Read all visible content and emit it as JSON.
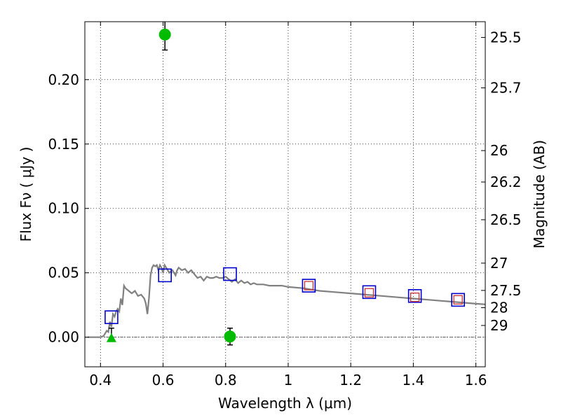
{
  "chart_data": {
    "type": "scatter",
    "xlabel": "Wavelength  λ (μm)",
    "ylabel": "Flux  Fν  ( μJy )",
    "y2label": "Magnitude (AB)",
    "xlim": [
      0.35,
      1.63
    ],
    "ylim": [
      -0.023,
      0.245
    ],
    "grid": true,
    "x_ticks": [
      0.4,
      0.6,
      0.8,
      1.0,
      1.2,
      1.4,
      1.6
    ],
    "x_tick_labels": [
      "0.4",
      "0.6",
      "0.8",
      "1",
      "1.2",
      "1.4",
      "1.6"
    ],
    "y_ticks": [
      0.0,
      0.05,
      0.1,
      0.15,
      0.2
    ],
    "y_tick_labels": [
      "0.00",
      "0.05",
      "0.10",
      "0.15",
      "0.20"
    ],
    "mag_ticks": [
      {
        "flux": 0.2328,
        "label": "25.5"
      },
      {
        "flux": 0.1936,
        "label": "25.7"
      },
      {
        "flux": 0.1449,
        "label": "26"
      },
      {
        "flux": 0.1205,
        "label": "26.2"
      },
      {
        "flux": 0.0912,
        "label": "26.5"
      },
      {
        "flux": 0.0575,
        "label": "27"
      },
      {
        "flux": 0.0363,
        "label": "27.5"
      },
      {
        "flux": 0.0229,
        "label": "28"
      },
      {
        "flux": 0.0091,
        "label": "29"
      }
    ],
    "model_spectrum": {
      "color": "#808080",
      "points": [
        [
          0.36,
          0.0
        ],
        [
          0.4,
          0.0
        ],
        [
          0.41,
          0.001
        ],
        [
          0.42,
          0.005
        ],
        [
          0.425,
          0.004
        ],
        [
          0.43,
          0.012
        ],
        [
          0.435,
          0.008
        ],
        [
          0.44,
          0.018
        ],
        [
          0.445,
          0.016
        ],
        [
          0.45,
          0.02
        ],
        [
          0.455,
          0.022
        ],
        [
          0.46,
          0.02
        ],
        [
          0.465,
          0.03
        ],
        [
          0.47,
          0.025
        ],
        [
          0.475,
          0.04
        ],
        [
          0.48,
          0.038
        ],
        [
          0.49,
          0.036
        ],
        [
          0.5,
          0.034
        ],
        [
          0.51,
          0.036
        ],
        [
          0.52,
          0.032
        ],
        [
          0.53,
          0.033
        ],
        [
          0.54,
          0.03
        ],
        [
          0.545,
          0.026
        ],
        [
          0.55,
          0.018
        ],
        [
          0.555,
          0.03
        ],
        [
          0.56,
          0.048
        ],
        [
          0.565,
          0.054
        ],
        [
          0.57,
          0.056
        ],
        [
          0.575,
          0.055
        ],
        [
          0.58,
          0.056
        ],
        [
          0.585,
          0.052
        ],
        [
          0.59,
          0.056
        ],
        [
          0.595,
          0.054
        ],
        [
          0.6,
          0.05
        ],
        [
          0.605,
          0.056
        ],
        [
          0.61,
          0.054
        ],
        [
          0.62,
          0.05
        ],
        [
          0.63,
          0.052
        ],
        [
          0.64,
          0.048
        ],
        [
          0.645,
          0.052
        ],
        [
          0.65,
          0.054
        ],
        [
          0.66,
          0.052
        ],
        [
          0.67,
          0.053
        ],
        [
          0.68,
          0.05
        ],
        [
          0.69,
          0.052
        ],
        [
          0.7,
          0.049
        ],
        [
          0.71,
          0.046
        ],
        [
          0.72,
          0.047
        ],
        [
          0.73,
          0.044
        ],
        [
          0.74,
          0.047
        ],
        [
          0.75,
          0.046
        ],
        [
          0.76,
          0.046
        ],
        [
          0.77,
          0.047
        ],
        [
          0.78,
          0.046
        ],
        [
          0.79,
          0.046
        ],
        [
          0.8,
          0.047
        ],
        [
          0.81,
          0.045
        ],
        [
          0.82,
          0.043
        ],
        [
          0.83,
          0.045
        ],
        [
          0.84,
          0.042
        ],
        [
          0.85,
          0.044
        ],
        [
          0.86,
          0.042
        ],
        [
          0.87,
          0.043
        ],
        [
          0.88,
          0.041
        ],
        [
          0.89,
          0.042
        ],
        [
          0.9,
          0.041
        ],
        [
          0.92,
          0.041
        ],
        [
          0.94,
          0.04
        ],
        [
          0.96,
          0.04
        ],
        [
          0.98,
          0.04
        ],
        [
          1.0,
          0.039
        ],
        [
          1.05,
          0.038
        ],
        [
          1.1,
          0.036
        ],
        [
          1.15,
          0.035
        ],
        [
          1.2,
          0.034
        ],
        [
          1.25,
          0.033
        ],
        [
          1.3,
          0.032
        ],
        [
          1.35,
          0.031
        ],
        [
          1.4,
          0.03
        ],
        [
          1.45,
          0.029
        ],
        [
          1.5,
          0.028
        ],
        [
          1.55,
          0.027
        ],
        [
          1.6,
          0.026
        ],
        [
          1.63,
          0.0255
        ]
      ]
    },
    "observed_points": {
      "color": "#00bb00",
      "points": [
        {
          "x": 0.606,
          "y": 0.235,
          "err": 0.012
        },
        {
          "x": 0.814,
          "y": 0.0005,
          "err": 0.0065
        }
      ]
    },
    "upper_limit_points": {
      "color": "#00bb00",
      "points": [
        {
          "x": 0.435,
          "y": 0.0,
          "err": 0.007
        }
      ]
    },
    "model_photometry": {
      "color": "#0000cc",
      "points": [
        {
          "x": 0.435,
          "y": 0.0155
        },
        {
          "x": 0.606,
          "y": 0.048
        },
        {
          "x": 0.814,
          "y": 0.049
        },
        {
          "x": 1.066,
          "y": 0.04
        },
        {
          "x": 1.259,
          "y": 0.035
        },
        {
          "x": 1.405,
          "y": 0.032
        },
        {
          "x": 1.543,
          "y": 0.029
        }
      ]
    },
    "observed_photometry": {
      "color": "#cc3333",
      "points": [
        {
          "x": 1.066,
          "y": 0.04
        },
        {
          "x": 1.259,
          "y": 0.0345
        },
        {
          "x": 1.405,
          "y": 0.031
        },
        {
          "x": 1.543,
          "y": 0.029
        }
      ]
    }
  }
}
